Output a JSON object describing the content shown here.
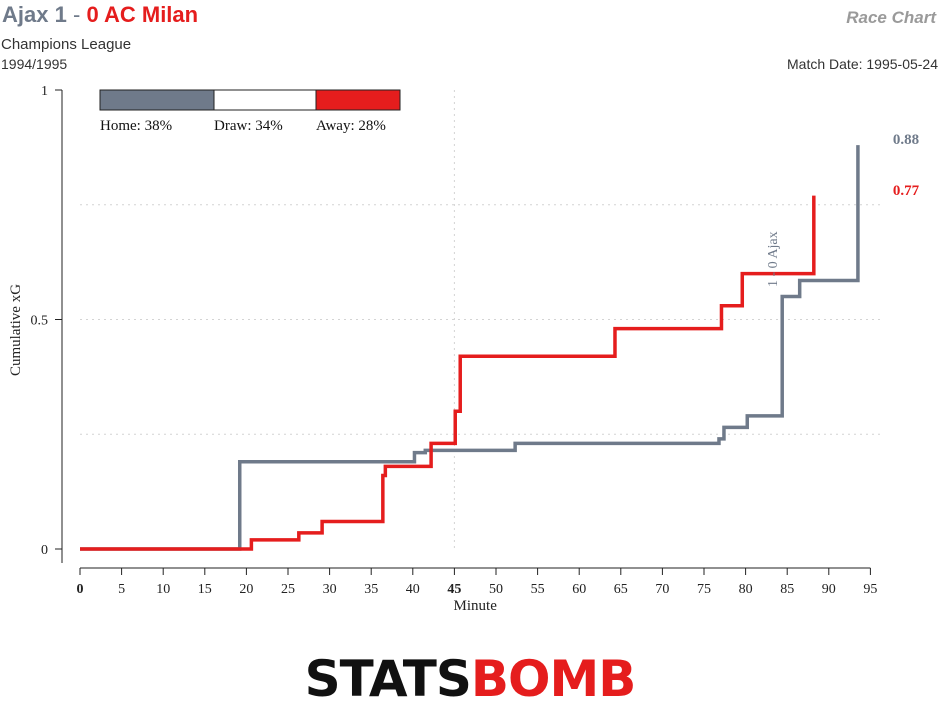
{
  "header": {
    "home_team": "Ajax",
    "home_score": "1",
    "separator": "-",
    "away_score": "0",
    "away_team": "AC Milan",
    "competition": "Champions League",
    "season": "1994/1995",
    "chart_name": "Race Chart",
    "match_date": "Match Date: 1995-05-24"
  },
  "logo": {
    "part1": "STATS",
    "part2": "BOMB"
  },
  "colors": {
    "home": "#6f7a8a",
    "away": "#e51d1d",
    "draw": "#ffffff"
  },
  "chart_data": {
    "type": "line",
    "xlabel": "Minute",
    "ylabel": "Cumulative xG",
    "xlim": [
      0,
      96
    ],
    "ylim": [
      0,
      1
    ],
    "x_ticks": [
      0,
      5,
      10,
      15,
      20,
      25,
      30,
      35,
      40,
      45,
      50,
      55,
      60,
      65,
      70,
      75,
      80,
      85,
      90,
      95
    ],
    "x_tick_labels": [
      "0",
      "5",
      "10",
      "15",
      "20",
      "25",
      "30",
      "35",
      "40",
      "45",
      "50",
      "55",
      "60",
      "65",
      "70",
      "75",
      "80",
      "85",
      "90",
      "95"
    ],
    "y_ticks": [
      0,
      0.5,
      1
    ],
    "y_tick_labels": [
      "0",
      "0.5",
      "1"
    ],
    "grid": "dotted",
    "probabilities": [
      {
        "label": "Home: 38%",
        "value": 38,
        "color": "#6f7a8a"
      },
      {
        "label": "Draw: 34%",
        "value": 34,
        "color": "#ffffff"
      },
      {
        "label": "Away: 28%",
        "value": 28,
        "color": "#e51d1d"
      }
    ],
    "legend_position": "top-left",
    "series": [
      {
        "name": "Ajax",
        "color": "#6f7a8a",
        "final_label": "0.88",
        "final_value": 0.88,
        "steps": [
          [
            0,
            0
          ],
          [
            19.2,
            0.19
          ],
          [
            40.2,
            0.21
          ],
          [
            41.5,
            0.215
          ],
          [
            52.3,
            0.23
          ],
          [
            76.8,
            0.24
          ],
          [
            77.4,
            0.265
          ],
          [
            80.2,
            0.29
          ],
          [
            84.4,
            0.55
          ],
          [
            86.5,
            0.585
          ],
          [
            93.5,
            0.88
          ]
        ]
      },
      {
        "name": "AC Milan",
        "color": "#e51d1d",
        "final_label": "0.77",
        "final_value": 0.77,
        "steps": [
          [
            0,
            0
          ],
          [
            20.6,
            0.02
          ],
          [
            26.3,
            0.035
          ],
          [
            29.1,
            0.06
          ],
          [
            36.4,
            0.16
          ],
          [
            36.7,
            0.18
          ],
          [
            42.2,
            0.23
          ],
          [
            45.1,
            0.3
          ],
          [
            45.7,
            0.42
          ],
          [
            64.3,
            0.48
          ],
          [
            77.1,
            0.53
          ],
          [
            79.6,
            0.6
          ],
          [
            88.2,
            0.77
          ]
        ]
      }
    ],
    "annotations": [
      {
        "label": "1 - 0 Ajax",
        "minute": 84,
        "color": "#6f7a8a"
      }
    ]
  }
}
